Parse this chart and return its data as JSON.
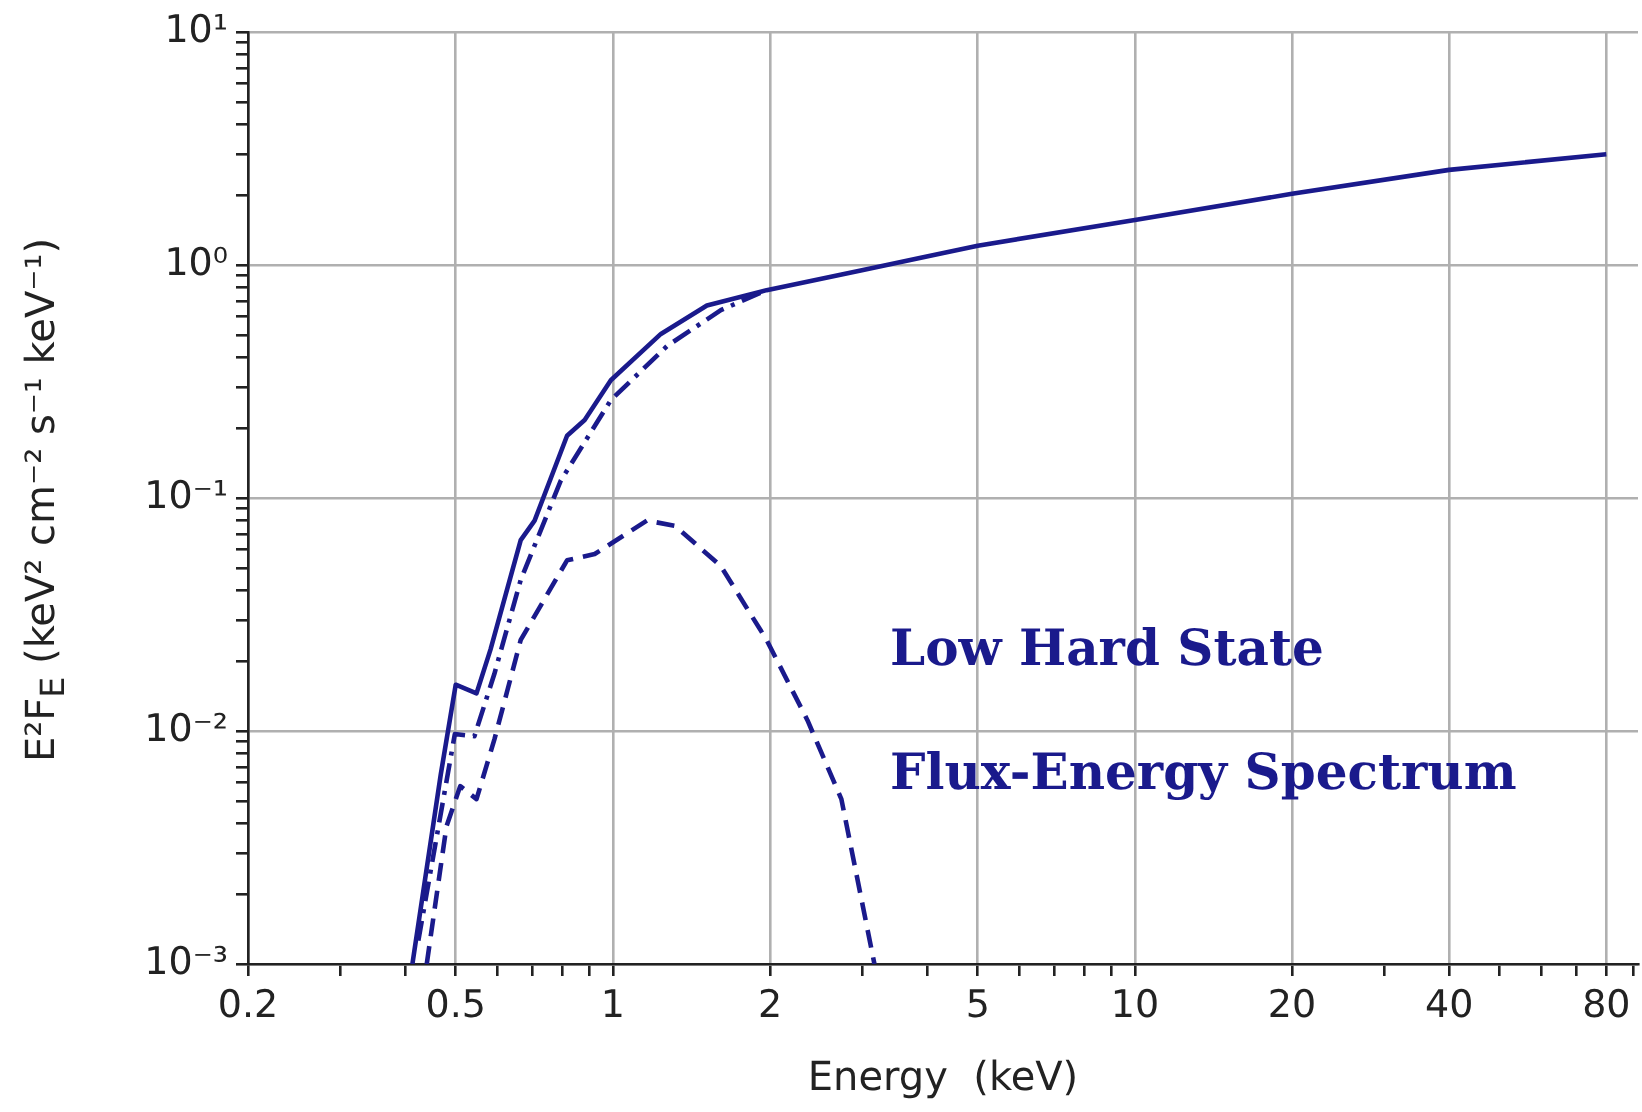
{
  "chart_data": {
    "type": "line",
    "xlabel": "Energy  (keV)",
    "ylabel": "E²F$_{E}$  (keV² cm⁻² s⁻¹ keV⁻¹)",
    "log": "xy",
    "grid": true,
    "legend": false,
    "marker": "none",
    "xlim": [
      0.2,
      92
    ],
    "ylim": [
      0.001,
      10
    ],
    "xticks": [
      0.2,
      {
        "value": 0.3,
        "label": null
      },
      {
        "value": 0.4,
        "label": null
      },
      0.5,
      {
        "value": 0.6,
        "label": null
      },
      {
        "value": 0.7,
        "label": null
      },
      {
        "value": 0.8,
        "label": null
      },
      {
        "value": 0.9,
        "label": null
      },
      1,
      2,
      {
        "value": 3,
        "label": null
      },
      {
        "value": 4,
        "label": null
      },
      5,
      {
        "value": 6,
        "label": null
      },
      {
        "value": 7,
        "label": null
      },
      {
        "value": 8,
        "label": null
      },
      {
        "value": 9,
        "label": null
      },
      10,
      20,
      {
        "value": 30,
        "label": null
      },
      40,
      {
        "value": 50,
        "label": null
      },
      {
        "value": 60,
        "label": null
      },
      {
        "value": 70,
        "label": null
      },
      80,
      {
        "value": 90,
        "label": null
      }
    ],
    "yticks": [
      {
        "value": 0.001,
        "label": "10⁻³"
      },
      {
        "value": 0.002,
        "label": null
      },
      {
        "value": 0.003,
        "label": null
      },
      {
        "value": 0.004,
        "label": null
      },
      {
        "value": 0.005,
        "label": null
      },
      {
        "value": 0.006,
        "label": null
      },
      {
        "value": 0.007,
        "label": null
      },
      {
        "value": 0.008,
        "label": null
      },
      {
        "value": 0.009,
        "label": null
      },
      {
        "value": 0.01,
        "label": "10⁻²"
      },
      {
        "value": 0.02,
        "label": null
      },
      {
        "value": 0.03,
        "label": null
      },
      {
        "value": 0.04,
        "label": null
      },
      {
        "value": 0.05,
        "label": null
      },
      {
        "value": 0.06,
        "label": null
      },
      {
        "value": 0.07,
        "label": null
      },
      {
        "value": 0.08,
        "label": null
      },
      {
        "value": 0.09,
        "label": null
      },
      {
        "value": 0.1,
        "label": "10⁻¹"
      },
      {
        "value": 0.2,
        "label": null
      },
      {
        "value": 0.3,
        "label": null
      },
      {
        "value": 0.4,
        "label": null
      },
      {
        "value": 0.5,
        "label": null
      },
      {
        "value": 0.6,
        "label": null
      },
      {
        "value": 0.7,
        "label": null
      },
      {
        "value": 0.8,
        "label": null
      },
      {
        "value": 0.9,
        "label": null
      },
      {
        "value": 1,
        "label": "10⁰"
      },
      {
        "value": 2,
        "label": null
      },
      {
        "value": 3,
        "label": null
      },
      {
        "value": 4,
        "label": null
      },
      {
        "value": 5,
        "label": null
      },
      {
        "value": 6,
        "label": null
      },
      {
        "value": 7,
        "label": null
      },
      {
        "value": 8,
        "label": null
      },
      {
        "value": 9,
        "label": null
      },
      {
        "value": 10,
        "label": "10¹"
      }
    ],
    "annotations": [
      "Low Hard State",
      "Flux-Energy Spectrum"
    ],
    "series": [
      {
        "color": "#1a1a8c",
        "line_style": "solid",
        "x": [
          0.413,
          0.468,
          0.5,
          0.548,
          0.583,
          0.666,
          0.708,
          0.817,
          0.883,
          0.991,
          1.236,
          1.514,
          1.97,
          3,
          5,
          10,
          20,
          40,
          80
        ],
        "values": [
          0.001,
          0.0065,
          0.0158,
          0.0145,
          0.0224,
          0.066,
          0.08,
          0.185,
          0.216,
          0.32,
          0.506,
          0.67,
          0.78,
          0.95,
          1.21,
          1.56,
          2.02,
          2.56,
          2.99
        ]
      },
      {
        "color": "#1a1a8c",
        "line_style": "dashdot",
        "x": [
          0.424,
          0.498,
          0.543,
          0.593,
          0.666,
          0.795,
          0.991,
          1.27,
          1.61,
          1.97
        ],
        "values": [
          0.00126,
          0.0097,
          0.0095,
          0.0176,
          0.0445,
          0.119,
          0.263,
          0.449,
          0.64,
          0.78
        ]
      },
      {
        "color": "#1a1a8c",
        "line_style": "dashed",
        "x": [
          0.44,
          0.48,
          0.51,
          0.548,
          0.593,
          0.666,
          0.817,
          0.923,
          1.162,
          1.315,
          1.61,
          1.97,
          2.36,
          2.74,
          3.17
        ],
        "values": [
          0.001,
          0.0039,
          0.0058,
          0.0051,
          0.0092,
          0.0246,
          0.054,
          0.0575,
          0.08,
          0.076,
          0.051,
          0.0246,
          0.0111,
          0.0051,
          0.001
        ]
      }
    ]
  }
}
